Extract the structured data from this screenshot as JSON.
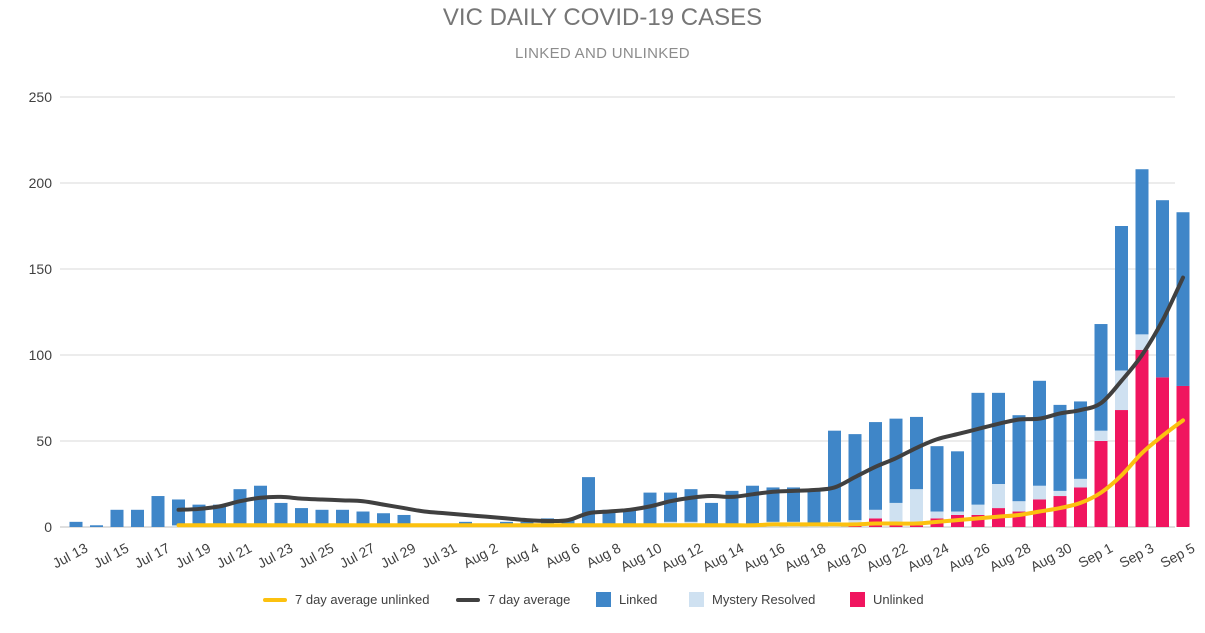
{
  "chart_data": {
    "type": "bar",
    "title": "VIC DAILY COVID-19 CASES",
    "subtitle": "LINKED AND UNLINKED",
    "stacked": true,
    "categories": [
      "Jul 13",
      "Jul 14",
      "Jul 15",
      "Jul 16",
      "Jul 17",
      "Jul 18",
      "Jul 19",
      "Jul 20",
      "Jul 21",
      "Jul 22",
      "Jul 23",
      "Jul 24",
      "Jul 25",
      "Jul 26",
      "Jul 27",
      "Jul 28",
      "Jul 29",
      "Jul 30",
      "Jul 31",
      "Aug 1",
      "Aug 2",
      "Aug 3",
      "Aug 4",
      "Aug 5",
      "Aug 6",
      "Aug 7",
      "Aug 8",
      "Aug 9",
      "Aug 10",
      "Aug 11",
      "Aug 12",
      "Aug 13",
      "Aug 14",
      "Aug 15",
      "Aug 16",
      "Aug 17",
      "Aug 18",
      "Aug 19",
      "Aug 20",
      "Aug 21",
      "Aug 22",
      "Aug 23",
      "Aug 24",
      "Aug 25",
      "Aug 26",
      "Aug 27",
      "Aug 28",
      "Aug 29",
      "Aug 30",
      "Aug 31",
      "Sep 1",
      "Sep 2",
      "Sep 3",
      "Sep 4",
      "Sep 5"
    ],
    "tick_labels": [
      "Jul 13",
      "Jul 15",
      "Jul 17",
      "Jul 19",
      "Jul 21",
      "Jul 23",
      "Jul 25",
      "Jul 27",
      "Jul 29",
      "Jul 31",
      "Aug 2",
      "Aug 4",
      "Aug 6",
      "Aug 8",
      "Aug 10",
      "Aug 12",
      "Aug 14",
      "Aug 16",
      "Aug 18",
      "Aug 20",
      "Aug 22",
      "Aug 24",
      "Aug 26",
      "Aug 28",
      "Aug 30",
      "Sep 1",
      "Sep 3",
      "Sep 5"
    ],
    "ylim": [
      0,
      250
    ],
    "yticks": [
      0,
      50,
      100,
      150,
      200,
      250
    ],
    "grid": true,
    "legend_position": "bottom",
    "series": [
      {
        "name": "Unlinked",
        "kind": "bar",
        "color": "#f0155f",
        "values": [
          0,
          0,
          0,
          0,
          0,
          0,
          0,
          0,
          0,
          0,
          0,
          0,
          0,
          0,
          0,
          0,
          0,
          0,
          0,
          0,
          0,
          0,
          0,
          0,
          0,
          0,
          0,
          0,
          0,
          0,
          0,
          0,
          0,
          0,
          0,
          0,
          0,
          0,
          1,
          5,
          1,
          1,
          5,
          7,
          7,
          11,
          9,
          16,
          18,
          23,
          50,
          68,
          103,
          87,
          82
        ]
      },
      {
        "name": "Mystery Resolved",
        "kind": "bar",
        "color": "#cfe1f1",
        "values": [
          0,
          0,
          0,
          0,
          0,
          1,
          1,
          1,
          0,
          0,
          0,
          0,
          0,
          0,
          0,
          0,
          0,
          0,
          0,
          0,
          0,
          0,
          0,
          0,
          0,
          1,
          1,
          1,
          2,
          3,
          3,
          2,
          2,
          2,
          3,
          3,
          2,
          3,
          3,
          5,
          13,
          21,
          4,
          2,
          6,
          14,
          6,
          8,
          3,
          5,
          6,
          23,
          9,
          0,
          0
        ]
      },
      {
        "name": "Linked",
        "kind": "bar",
        "color": "#3f86c8",
        "values": [
          3,
          1,
          10,
          10,
          18,
          15,
          12,
          12,
          22,
          24,
          14,
          11,
          10,
          10,
          9,
          8,
          7,
          2,
          2,
          3,
          2,
          3,
          3,
          5,
          4,
          28,
          9,
          9,
          18,
          17,
          19,
          12,
          19,
          22,
          20,
          20,
          20,
          53,
          50,
          51,
          49,
          42,
          38,
          35,
          65,
          53,
          50,
          61,
          50,
          45,
          62,
          84,
          96,
          103,
          101
        ]
      },
      {
        "name": "7 day average",
        "kind": "line",
        "color": "#404040",
        "values": [
          null,
          null,
          null,
          null,
          null,
          10,
          10.5,
          12,
          15,
          17,
          17.5,
          16.5,
          16,
          15.5,
          15,
          13,
          11,
          9,
          8,
          7,
          6,
          5,
          4,
          3.5,
          4,
          8,
          9,
          10,
          12,
          15,
          17,
          18,
          17.5,
          19,
          20.5,
          21,
          21.5,
          23,
          29,
          35,
          40,
          46,
          51,
          54,
          57,
          60,
          62.5,
          63,
          66,
          68,
          72,
          85,
          100,
          120,
          145
        ]
      },
      {
        "name": "7 day average unlinked",
        "kind": "line",
        "color": "#fcc10f",
        "values": [
          null,
          null,
          null,
          null,
          null,
          1,
          1,
          1,
          1,
          1,
          1,
          1,
          1,
          1,
          1,
          1,
          1,
          1,
          1,
          1,
          1,
          1,
          1,
          1,
          1,
          1,
          1,
          1,
          1,
          1,
          1,
          1,
          1,
          1,
          1.5,
          1.5,
          1.5,
          1.5,
          1.5,
          2,
          2,
          2,
          3,
          4,
          5,
          6,
          7,
          9,
          11,
          14,
          20,
          30,
          43,
          53,
          62
        ]
      }
    ]
  },
  "legend": [
    {
      "label": "7 day average unlinked",
      "swatch": "line",
      "color": "#fcc10f"
    },
    {
      "label": "7 day average",
      "swatch": "line",
      "color": "#404040"
    },
    {
      "label": "Linked",
      "swatch": "box",
      "color": "#3f86c8"
    },
    {
      "label": "Mystery Resolved",
      "swatch": "box",
      "color": "#cfe1f1"
    },
    {
      "label": "Unlinked",
      "swatch": "box",
      "color": "#f0155f"
    }
  ]
}
